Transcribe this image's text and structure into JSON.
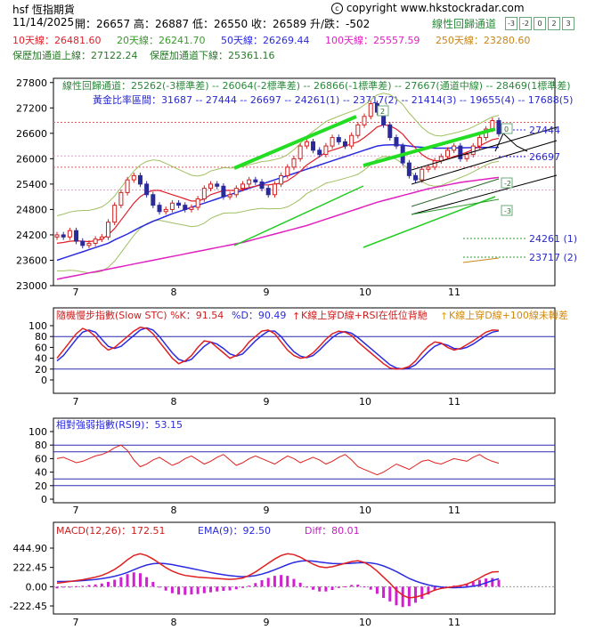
{
  "header": {
    "symbol": "hsf 恆指期貨",
    "copyright": "copyright www.hkstockradar.com",
    "date": "11/14/2025",
    "ohlc": "開：26657 高：26887 低：26550 收：26589 升/跌：-502",
    "channel_label": "線性回歸通道",
    "channel_buttons": [
      "-3",
      "-2",
      "0",
      "2",
      "3"
    ],
    "ma": [
      {
        "text": "10天線：26481.60",
        "color": "#e0202a"
      },
      {
        "text": "20天線：26241.70",
        "color": "#3a9a2a"
      },
      {
        "text": "50天線：26269.44",
        "color": "#2a2ae0"
      },
      {
        "text": "100天線：25557.59",
        "color": "#e020c0"
      },
      {
        "text": "250天線：23280.60",
        "color": "#c8861a"
      }
    ],
    "bands": [
      {
        "text": "保歷加通道上線：27122.24",
        "color": "#2a7a2a"
      },
      {
        "text": "保歷加通道下線：25361.16",
        "color": "#2a7a2a"
      }
    ]
  },
  "price_panel": {
    "regression_text": "線性回歸通道：25262(-3標準差) -- 26064(-2標準差) -- 26866(-1標準差) -- 27667(通道中線) -- 28469(1標準差)",
    "golden_text": "黃金比率區間：31687 -- 27444 -- 26697 -- 24261(1) -- 23717(2) -- 21414(3) -- 19655(4) -- 17688(5)",
    "y_ticks": [
      "27800",
      "27200",
      "26600",
      "26000",
      "25400",
      "24800",
      "24200",
      "23600",
      "23000"
    ],
    "right_labels": [
      "27444",
      "26697",
      "24261 (1)",
      "23717 (2)"
    ],
    "channel_tags": [
      "0",
      "-2",
      "-3",
      "2"
    ]
  },
  "months": [
    "7",
    "8",
    "9",
    "10",
    "11"
  ],
  "stc_panel": {
    "title": "隨機慢步指數(Slow STC) %K：91.54",
    "d_text": "%D：90.49",
    "signal1": "K線上穿D線+RSI在低位背馳",
    "signal2": "K線上穿D線+100線未轉差",
    "y_ticks": [
      "100",
      "80",
      "60",
      "40",
      "20",
      "0"
    ]
  },
  "rsi_panel": {
    "title": "相對強弱指數(RSI9)：53.15",
    "y_ticks": [
      "100",
      "80",
      "60",
      "40",
      "20",
      "0"
    ]
  },
  "macd_panel": {
    "macd_text": "MACD(12,26)：172.51",
    "ema_text": "EMA(9)：92.50",
    "diff_text": "Diff：80.01",
    "y_ticks": [
      "444.90",
      "222.45",
      "0.00",
      "-222.45"
    ]
  },
  "chart_data": {
    "type": "line",
    "title": "hsf 恆指期貨",
    "x_labels": [
      "7",
      "8",
      "9",
      "10",
      "11"
    ],
    "price": {
      "ylim": [
        23000,
        27900
      ],
      "close": [
        24200,
        24150,
        24300,
        24050,
        23950,
        24000,
        24100,
        24150,
        24500,
        24900,
        25200,
        25500,
        25600,
        25400,
        25150,
        24900,
        24750,
        24800,
        24950,
        24900,
        24800,
        24850,
        25050,
        25300,
        25400,
        25350,
        25100,
        25150,
        25300,
        25400,
        25500,
        25450,
        25300,
        25150,
        25400,
        25600,
        25800,
        26000,
        26300,
        26400,
        26200,
        26100,
        26300,
        26500,
        26400,
        26300,
        26550,
        26800,
        27000,
        27300,
        27100,
        26800,
        26500,
        26300,
        25900,
        25600,
        25500,
        25750,
        25800,
        25950,
        26050,
        26200,
        26300,
        26000,
        26100,
        26300,
        26500,
        26700,
        26900,
        26589
      ],
      "ma10": [
        24000,
        24020,
        24050,
        24060,
        24050,
        24040,
        24060,
        24100,
        24200,
        24350,
        24550,
        24750,
        24950,
        25100,
        25200,
        25250,
        25250,
        25200,
        25150,
        25100,
        25050,
        25000,
        25000,
        25050,
        25150,
        25200,
        25250,
        25250,
        25250,
        25280,
        25320,
        25350,
        25380,
        25380,
        25400,
        25420,
        25480,
        25580,
        25700,
        25850,
        25950,
        26050,
        26150,
        26200,
        26250,
        26300,
        26350,
        26400,
        26500,
        26620,
        26750,
        26800,
        26780,
        26700,
        26580,
        26400,
        26250,
        26100,
        26000,
        25950,
        25950,
        26000,
        26050,
        26100,
        26150,
        26220,
        26300,
        26380,
        26450,
        26481
      ],
      "ma50": [
        23600,
        23650,
        23700,
        23750,
        23800,
        23850,
        23900,
        23950,
        24000,
        24080,
        24150,
        24220,
        24300,
        24380,
        24450,
        24520,
        24580,
        24640,
        24700,
        24750,
        24800,
        24850,
        24900,
        24950,
        25000,
        25050,
        25100,
        25150,
        25200,
        25250,
        25300,
        25350,
        25400,
        25450,
        25500,
        25550,
        25600,
        25650,
        25700,
        25750,
        25800,
        25850,
        25900,
        25950,
        26000,
        26050,
        26100,
        26150,
        26200,
        26250,
        26300,
        26320,
        26330,
        26330,
        26320,
        26300,
        26280,
        26270,
        26260,
        26250,
        26250,
        26250,
        26255,
        26258,
        26260,
        26262,
        26264,
        26266,
        26268,
        26269
      ],
      "ma100": [
        23150,
        23180,
        23210,
        23240,
        23270,
        23300,
        23330,
        23360,
        23390,
        23420,
        23450,
        23480,
        23510,
        23540,
        23570,
        23600,
        23630,
        23660,
        23690,
        23720,
        23750,
        23780,
        23810,
        23840,
        23870,
        23900,
        23930,
        23960,
        23990,
        24020,
        24060,
        24100,
        24140,
        24180,
        24220,
        24260,
        24300,
        24340,
        24380,
        24420,
        24470,
        24520,
        24570,
        24620,
        24670,
        24720,
        24770,
        24820,
        24870,
        24920,
        24970,
        25010,
        25050,
        25090,
        25130,
        25170,
        25210,
        25250,
        25290,
        25320,
        25350,
        25380,
        25410,
        25440,
        25460,
        25480,
        25500,
        25520,
        25540,
        25557
      ]
    },
    "stc": {
      "ylim": [
        0,
        100
      ],
      "k": [
        40,
        55,
        70,
        85,
        95,
        90,
        80,
        65,
        55,
        60,
        70,
        80,
        90,
        97,
        95,
        85,
        70,
        55,
        40,
        30,
        35,
        45,
        60,
        72,
        70,
        60,
        50,
        40,
        45,
        55,
        70,
        80,
        90,
        92,
        85,
        70,
        55,
        45,
        40,
        42,
        50,
        62,
        75,
        85,
        90,
        88,
        82,
        70,
        60,
        50,
        40,
        30,
        22,
        20,
        21,
        25,
        35,
        50,
        62,
        70,
        68,
        60,
        55,
        58,
        65,
        72,
        80,
        88,
        92,
        91.54
      ],
      "d": [
        35,
        45,
        60,
        75,
        88,
        92,
        88,
        75,
        62,
        58,
        62,
        72,
        82,
        92,
        96,
        92,
        80,
        65,
        50,
        38,
        34,
        38,
        50,
        62,
        70,
        66,
        58,
        48,
        44,
        48,
        60,
        72,
        82,
        90,
        90,
        80,
        65,
        52,
        44,
        41,
        45,
        55,
        67,
        78,
        86,
        89,
        86,
        78,
        68,
        58,
        48,
        38,
        28,
        22,
        20,
        22,
        28,
        40,
        52,
        62,
        67,
        64,
        58,
        57,
        60,
        66,
        74,
        82,
        88,
        90.49
      ]
    },
    "rsi9": {
      "ylim": [
        0,
        100
      ],
      "values": [
        60,
        62,
        58,
        54,
        56,
        60,
        64,
        66,
        70,
        76,
        80,
        72,
        58,
        48,
        52,
        58,
        62,
        56,
        50,
        54,
        60,
        64,
        58,
        52,
        56,
        62,
        66,
        58,
        50,
        54,
        60,
        64,
        60,
        56,
        52,
        58,
        64,
        60,
        54,
        58,
        62,
        58,
        52,
        56,
        62,
        66,
        58,
        48,
        44,
        40,
        36,
        40,
        46,
        52,
        48,
        44,
        50,
        56,
        58,
        54,
        52,
        56,
        60,
        58,
        56,
        62,
        66,
        60,
        56,
        53.15
      ]
    },
    "macd": {
      "ylim": [
        -222.45,
        444.9
      ],
      "macd": [
        40,
        50,
        60,
        70,
        80,
        95,
        110,
        130,
        160,
        200,
        250,
        310,
        360,
        380,
        360,
        320,
        270,
        220,
        180,
        150,
        130,
        120,
        110,
        105,
        100,
        95,
        90,
        85,
        90,
        100,
        130,
        170,
        220,
        270,
        320,
        360,
        380,
        370,
        340,
        300,
        260,
        230,
        220,
        230,
        250,
        270,
        290,
        300,
        280,
        240,
        180,
        110,
        40,
        -40,
        -100,
        -130,
        -120,
        -100,
        -70,
        -40,
        -20,
        -10,
        0,
        10,
        30,
        60,
        100,
        140,
        170,
        172.51
      ],
      "ema9": [
        60,
        60,
        62,
        65,
        70,
        76,
        84,
        93,
        105,
        120,
        140,
        165,
        195,
        225,
        250,
        265,
        270,
        265,
        255,
        240,
        225,
        210,
        195,
        180,
        165,
        150,
        138,
        128,
        120,
        115,
        118,
        128,
        145,
        168,
        195,
        225,
        255,
        280,
        295,
        300,
        295,
        285,
        275,
        268,
        265,
        266,
        270,
        276,
        278,
        274,
        262,
        240,
        210,
        175,
        135,
        95,
        65,
        40,
        20,
        5,
        -5,
        -10,
        -12,
        -10,
        -5,
        5,
        20,
        45,
        70,
        92.5
      ]
    }
  }
}
